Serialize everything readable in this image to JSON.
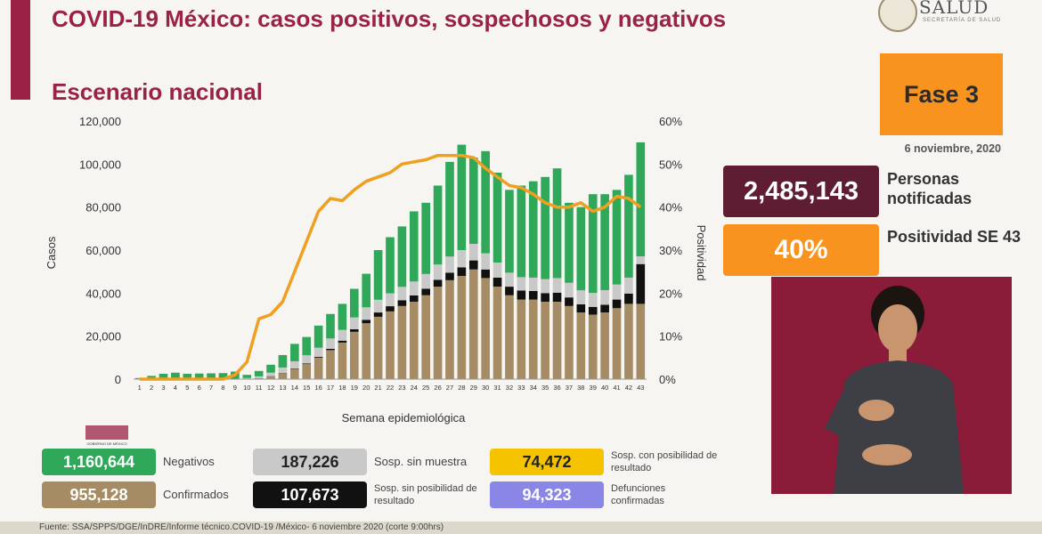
{
  "header": {
    "title": "COVID-19 México: casos positivos, sospechosos y negativos",
    "subtitle": "Escenario nacional",
    "logo_text": "SALUD",
    "logo_subtext": "SECRETARÍA DE SALUD"
  },
  "fase": {
    "label": "Fase 3",
    "date": "6 noviembre, 2020"
  },
  "stats": {
    "notificadas_value": "2,485,143",
    "notificadas_label": "Personas notificadas",
    "positividad_value": "40%",
    "positividad_label": "Positividad SE 43"
  },
  "legend": {
    "negativos": {
      "value": "1,160,644",
      "label": "Negativos"
    },
    "confirmados": {
      "value": "955,128",
      "label": "Confirmados"
    },
    "sosp_sin_muestra": {
      "value": "187,226",
      "label": "Sosp. sin muestra"
    },
    "sosp_sin_posibilidad": {
      "value": "107,673",
      "label": "Sosp. sin posibilidad de resultado"
    },
    "sosp_con_posibilidad": {
      "value": "74,472",
      "label": "Sosp. con posibilidad de resultado"
    },
    "defunciones": {
      "value": "94,323",
      "label": "Defunciones confirmadas"
    }
  },
  "gobierno_label": "GOBIERNO DE MÉXICO",
  "footer": "Fuente: SSA/SPPS/DGE/InDRE/Informe técnico.COVID-19 /México- 6 noviembre 2020 (corte 9:00hrs)",
  "colors": {
    "negativos": "#2fa85a",
    "confirmados": "#a58c64",
    "sosp_sin_muestra": "#c9c9c9",
    "sosp_sin_posibilidad": "#111111",
    "sosp_con_posibilidad": "#f5c300",
    "defunciones": "#8a86e6",
    "positividad": "#f0a020",
    "brand": "#9b2247"
  },
  "chart_data": {
    "type": "bar",
    "stacked": true,
    "xlabel": "Semana epidemiológica",
    "ylabel": "Casos",
    "y2label": "Positividad",
    "ylim": [
      0,
      120000
    ],
    "y2lim": [
      0,
      60
    ],
    "yticks": [
      "0",
      "20,000",
      "40,000",
      "60,000",
      "80,000",
      "100,000",
      "120,000"
    ],
    "y2ticks": [
      "0%",
      "10%",
      "20%",
      "30%",
      "40%",
      "50%",
      "60%"
    ],
    "categories": [
      "1",
      "2",
      "3",
      "4",
      "5",
      "6",
      "7",
      "8",
      "9",
      "10",
      "11",
      "12",
      "13",
      "14",
      "15",
      "16",
      "17",
      "18",
      "19",
      "20",
      "21",
      "22",
      "23",
      "24",
      "25",
      "26",
      "27",
      "28",
      "29",
      "30",
      "31",
      "32",
      "33",
      "34",
      "35",
      "36",
      "37",
      "38",
      "39",
      "40",
      "41",
      "42",
      "43"
    ],
    "series": [
      {
        "key": "confirmados",
        "values": [
          0,
          0,
          0,
          0,
          0,
          0,
          0,
          0,
          0,
          200,
          500,
          1300,
          2800,
          4800,
          7000,
          10000,
          13500,
          17000,
          22000,
          26000,
          29000,
          31500,
          34000,
          36000,
          39000,
          43000,
          46000,
          48000,
          51000,
          47000,
          43000,
          39000,
          37000,
          37000,
          36000,
          36000,
          34000,
          31000,
          30000,
          31000,
          33000,
          35000,
          35000
        ]
      },
      {
        "key": "sosp_sin_posibilidad",
        "values": [
          0,
          0,
          0,
          0,
          0,
          0,
          0,
          0,
          0,
          0,
          0,
          100,
          100,
          200,
          300,
          400,
          600,
          900,
          1200,
          1600,
          2000,
          2400,
          2700,
          2900,
          3000,
          3200,
          3500,
          4000,
          4200,
          4000,
          4200,
          4000,
          4200,
          4000,
          4000,
          4200,
          4000,
          3800,
          3600,
          3600,
          4000,
          4800,
          18500
        ]
      },
      {
        "key": "sosp_sin_muestra",
        "values": [
          0,
          0,
          0,
          0,
          0,
          0,
          0,
          0,
          0,
          300,
          800,
          1600,
          2500,
          3300,
          3800,
          4200,
          4800,
          5000,
          5500,
          5800,
          5900,
          6000,
          6200,
          6500,
          6900,
          7100,
          7500,
          8000,
          7700,
          7500,
          7000,
          6500,
          6200,
          6200,
          6500,
          6800,
          6800,
          6500,
          6500,
          6800,
          7000,
          7400,
          3600
        ]
      },
      {
        "key": "negativos",
        "values": [
          500,
          1500,
          2500,
          3000,
          2500,
          2600,
          2700,
          2800,
          3500,
          1500,
          2500,
          3700,
          5800,
          8100,
          8500,
          10300,
          11400,
          12100,
          13300,
          15600,
          23100,
          26100,
          28100,
          32600,
          33100,
          36700,
          44000,
          49000,
          40100,
          47500,
          41800,
          38500,
          42600,
          44800,
          47500,
          51000,
          37200,
          38700,
          45900,
          44600,
          44000,
          47800,
          53000
        ]
      }
    ],
    "positividad": [
      0,
      0,
      0,
      0,
      0,
      0,
      0,
      0,
      1,
      4,
      14,
      15,
      18,
      25,
      32,
      39,
      42,
      41.5,
      44,
      46,
      47,
      48,
      50,
      50.5,
      51,
      52,
      52,
      52,
      51.5,
      49,
      47,
      45,
      44.5,
      43,
      41,
      40,
      40,
      41,
      39,
      40,
      42.5,
      42,
      40
    ]
  }
}
